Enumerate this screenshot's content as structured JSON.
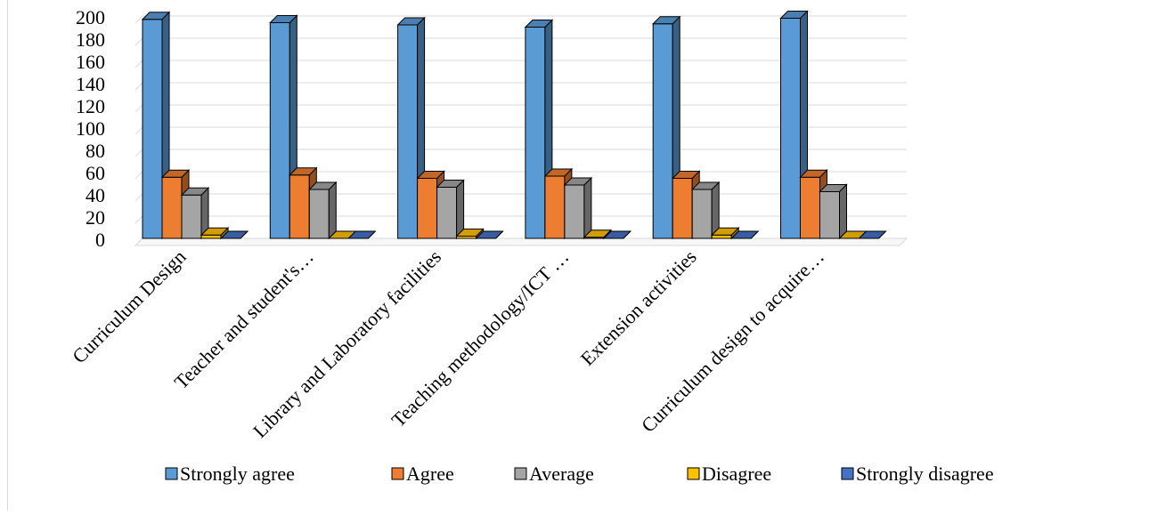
{
  "chart_data": {
    "type": "bar",
    "title": "",
    "xlabel": "",
    "ylabel": "",
    "ylim": [
      0,
      200
    ],
    "yticks": [
      0,
      20,
      40,
      60,
      80,
      100,
      120,
      140,
      160,
      180,
      200
    ],
    "grid": true,
    "legend_position": "bottom",
    "categories": [
      "Curriculum Design",
      "Teacher and student's…",
      "Library and Laboratory facilities",
      "Teaching methodology/ICT …",
      "Extension activities",
      "Curriculum design to acquire…"
    ],
    "series": [
      {
        "name": "Strongly agree",
        "color": "#5b9bd5",
        "values": [
          197,
          194,
          192,
          190,
          193,
          198
        ]
      },
      {
        "name": "Agree",
        "color": "#ed7d31",
        "values": [
          55,
          57,
          54,
          56,
          54,
          55
        ]
      },
      {
        "name": "Average",
        "color": "#a5a5a5",
        "values": [
          39,
          44,
          46,
          48,
          44,
          42
        ]
      },
      {
        "name": "Disagree",
        "color": "#ffc000",
        "values": [
          3,
          0,
          2,
          1,
          3,
          0
        ]
      },
      {
        "name": "Strongly disagree",
        "color": "#4472c4",
        "values": [
          0,
          0,
          0,
          0,
          0,
          0
        ]
      }
    ]
  }
}
